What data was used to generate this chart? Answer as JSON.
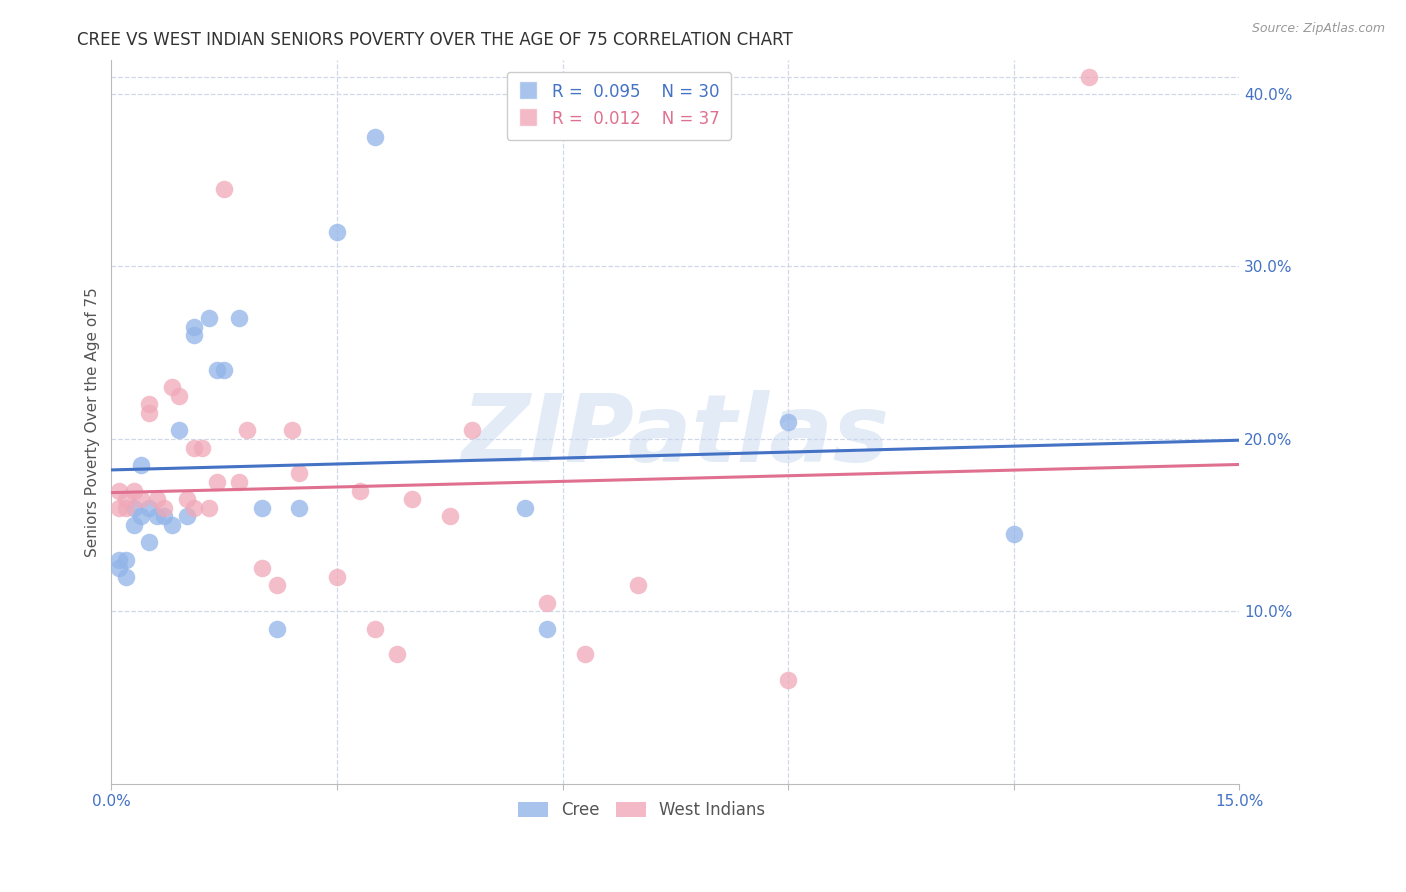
{
  "title": "CREE VS WEST INDIAN SENIORS POVERTY OVER THE AGE OF 75 CORRELATION CHART",
  "source": "Source: ZipAtlas.com",
  "ylabel": "Seniors Poverty Over the Age of 75",
  "watermark": "ZIPatlas",
  "xlim": [
    0.0,
    0.15
  ],
  "ylim": [
    0.0,
    0.42
  ],
  "yticks_right": [
    0.1,
    0.2,
    0.3,
    0.4
  ],
  "ytick_labels_right": [
    "10.0%",
    "20.0%",
    "30.0%",
    "40.0%"
  ],
  "cree_color": "#92b4e8",
  "west_color": "#f0a8b8",
  "cree_line_color": "#4472c4",
  "west_line_color": "#e07090",
  "legend_r_cree": "0.095",
  "legend_n_cree": "30",
  "legend_r_west": "0.012",
  "legend_n_west": "37",
  "cree_points_x": [
    0.001,
    0.001,
    0.002,
    0.002,
    0.003,
    0.003,
    0.004,
    0.004,
    0.005,
    0.005,
    0.006,
    0.007,
    0.008,
    0.009,
    0.01,
    0.011,
    0.011,
    0.013,
    0.014,
    0.015,
    0.017,
    0.02,
    0.022,
    0.025,
    0.03,
    0.035,
    0.055,
    0.058,
    0.09,
    0.12
  ],
  "cree_points_y": [
    0.13,
    0.125,
    0.12,
    0.13,
    0.15,
    0.16,
    0.155,
    0.185,
    0.14,
    0.16,
    0.155,
    0.155,
    0.15,
    0.205,
    0.155,
    0.265,
    0.26,
    0.27,
    0.24,
    0.24,
    0.27,
    0.16,
    0.09,
    0.16,
    0.32,
    0.375,
    0.16,
    0.09,
    0.21,
    0.145
  ],
  "west_points_x": [
    0.001,
    0.001,
    0.002,
    0.002,
    0.003,
    0.004,
    0.005,
    0.005,
    0.006,
    0.007,
    0.008,
    0.009,
    0.01,
    0.011,
    0.011,
    0.012,
    0.013,
    0.014,
    0.015,
    0.017,
    0.018,
    0.02,
    0.022,
    0.024,
    0.025,
    0.03,
    0.033,
    0.035,
    0.038,
    0.04,
    0.045,
    0.048,
    0.058,
    0.063,
    0.07,
    0.09,
    0.13
  ],
  "west_points_y": [
    0.16,
    0.17,
    0.165,
    0.16,
    0.17,
    0.165,
    0.22,
    0.215,
    0.165,
    0.16,
    0.23,
    0.225,
    0.165,
    0.16,
    0.195,
    0.195,
    0.16,
    0.175,
    0.345,
    0.175,
    0.205,
    0.125,
    0.115,
    0.205,
    0.18,
    0.12,
    0.17,
    0.09,
    0.075,
    0.165,
    0.155,
    0.205,
    0.105,
    0.075,
    0.115,
    0.06,
    0.41
  ],
  "bg_color": "#ffffff",
  "grid_color": "#d0d8e8",
  "axis_label_color": "#4472c4",
  "title_color": "#333333",
  "title_fontsize": 12,
  "axis_fontsize": 11,
  "legend_fontsize": 12,
  "watermark_fontsize": 68,
  "watermark_color": "#c8d8f0",
  "watermark_alpha": 0.5
}
